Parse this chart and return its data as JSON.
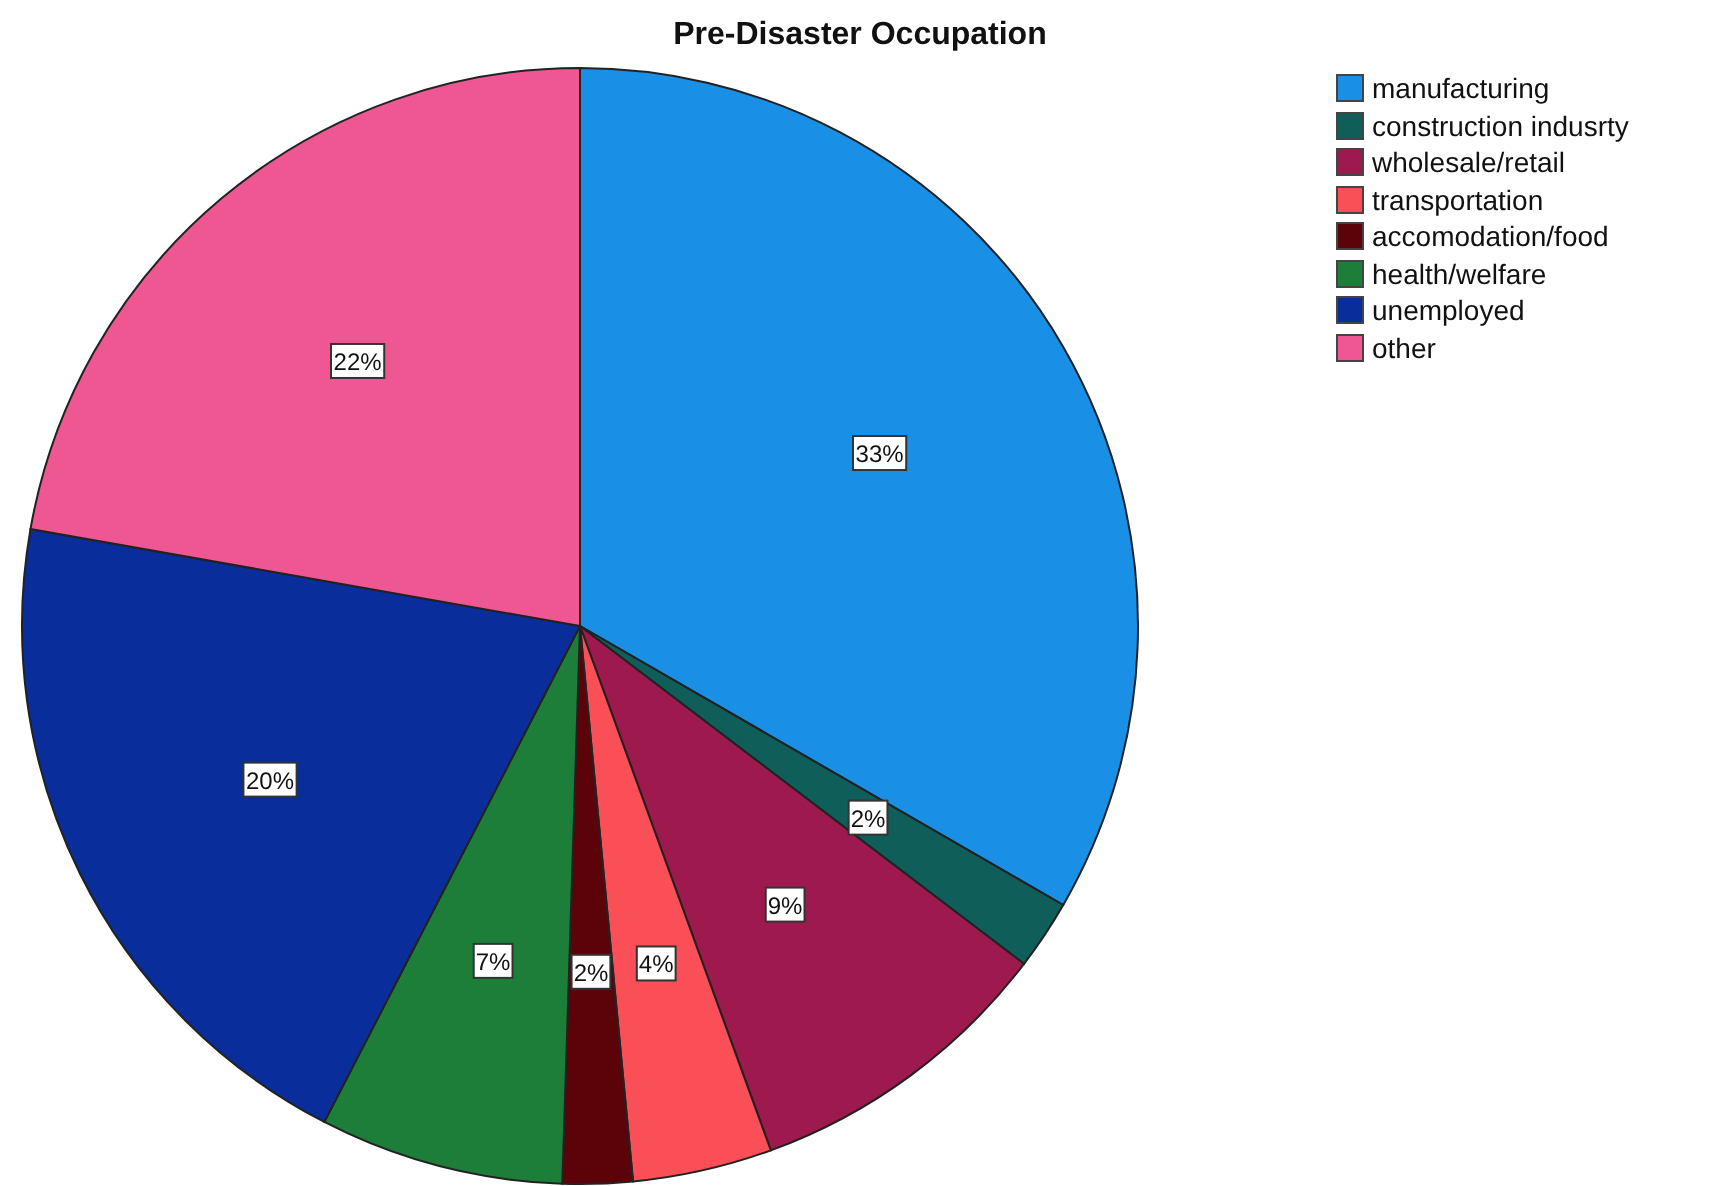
{
  "chart_data": {
    "type": "pie",
    "title": "Pre-Disaster Occupation",
    "categories": [
      "manufacturing",
      "construction indusrty",
      "wholesale/retail",
      "transportation",
      "accomodation/food",
      "health/welfare",
      "unemployed",
      "other"
    ],
    "values": [
      33,
      2,
      9,
      4,
      2,
      7,
      20,
      22
    ],
    "value_labels": [
      "33%",
      "2%",
      "9%",
      "4%",
      "2%",
      "7%",
      "20%",
      "22%"
    ],
    "colors": [
      "#1a8fe6",
      "#0f5e5a",
      "#9e1a4e",
      "#fb4f58",
      "#5b0309",
      "#1d7e3a",
      "#0a2d9c",
      "#ee5791"
    ],
    "legend": "top right"
  }
}
